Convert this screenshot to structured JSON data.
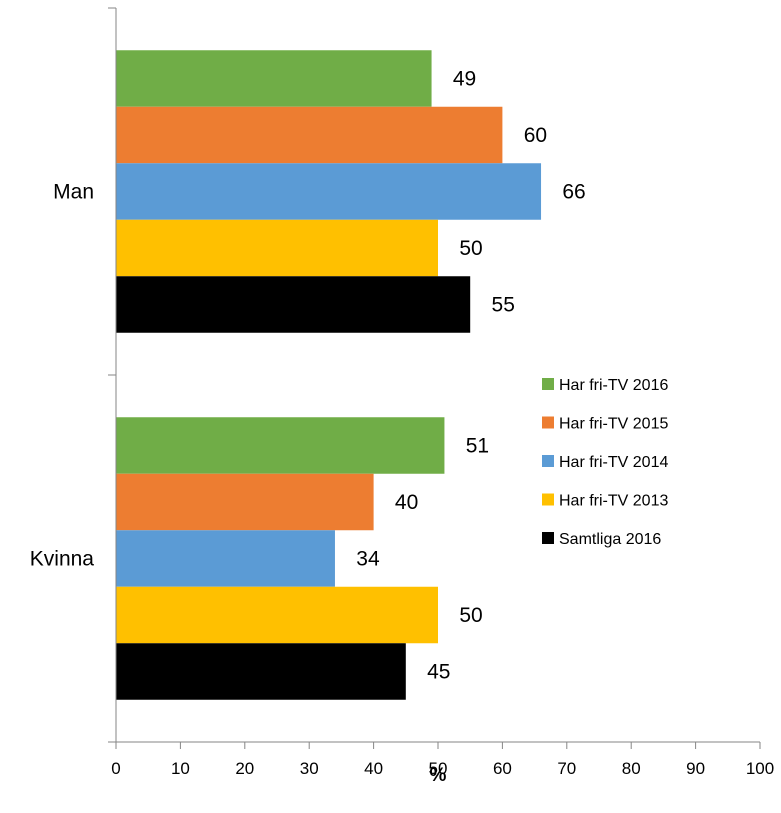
{
  "chart_data": {
    "type": "bar",
    "orientation": "horizontal",
    "title": "",
    "xlabel": "%",
    "ylabel": "",
    "xlim": [
      0,
      100
    ],
    "xticks": [
      0,
      10,
      20,
      30,
      40,
      50,
      60,
      70,
      80,
      90,
      100
    ],
    "categories": [
      "Man",
      "Kvinna"
    ],
    "series": [
      {
        "name": "Har fri-TV 2016",
        "color": "#70AD47",
        "values": [
          49,
          51
        ]
      },
      {
        "name": "Har fri-TV 2015",
        "color": "#ED7D31",
        "values": [
          60,
          40
        ]
      },
      {
        "name": "Har fri-TV 2014",
        "color": "#5B9BD5",
        "values": [
          66,
          34
        ]
      },
      {
        "name": "Har fri-TV 2013",
        "color": "#FFC000",
        "values": [
          50,
          50
        ]
      },
      {
        "name": "Samtliga 2016",
        "color": "#000000",
        "values": [
          55,
          45
        ]
      }
    ],
    "grid": false,
    "legend_position": "right"
  }
}
